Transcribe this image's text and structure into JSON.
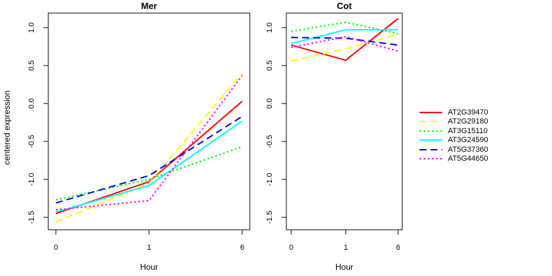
{
  "figure": {
    "background_color": "#ffffff",
    "ylabel": "centered expression",
    "y_tick_labels": [
      "1.0",
      "0.5",
      "0.0",
      "-0.5",
      "-1.0",
      "-1.5"
    ],
    "x_tick_labels": [
      "0",
      "1",
      "6"
    ],
    "axis_color": "#000000"
  },
  "legend": {
    "position": "right-outside",
    "entries": [
      {
        "label": "AT2G39470",
        "color": "#FF0000",
        "line_style": "solid"
      },
      {
        "label": "AT2G29180",
        "color": "#FFFF00",
        "line_style": "dashed"
      },
      {
        "label": "AT3G15110",
        "color": "#00FF00",
        "line_style": "dotted"
      },
      {
        "label": "AT3G24590",
        "color": "#00FFFF",
        "line_style": "solid"
      },
      {
        "label": "AT5G37360",
        "color": "#0000FF",
        "line_style": "dashed"
      },
      {
        "label": "AT5G44650",
        "color": "#FF00FF",
        "line_style": "dotted"
      }
    ]
  },
  "chart_data": [
    {
      "type": "line",
      "title": "Mer",
      "xlabel": "Hour",
      "ylabel": "centered expression",
      "x": [
        0,
        1,
        6
      ],
      "x_spacing": "equal",
      "yticks": [
        1.0,
        0.5,
        0.0,
        -0.5,
        -1.0,
        -1.5
      ],
      "ylim": [
        -1.66,
        1.19
      ],
      "grid": false,
      "series": [
        {
          "name": "AT2G39470",
          "color": "#FF0000",
          "line_style": "solid",
          "values": [
            -1.45,
            -1.03,
            0.03
          ]
        },
        {
          "name": "AT2G29180",
          "color": "#FFFF00",
          "line_style": "dashed",
          "values": [
            -1.56,
            -1.05,
            0.4
          ]
        },
        {
          "name": "AT3G15110",
          "color": "#00FF00",
          "line_style": "dotted",
          "values": [
            -1.27,
            -1.0,
            -0.57
          ]
        },
        {
          "name": "AT3G24590",
          "color": "#00FFFF",
          "line_style": "solid",
          "values": [
            -1.43,
            -1.08,
            -0.23
          ]
        },
        {
          "name": "AT5G37360",
          "color": "#0000FF",
          "line_style": "dashed",
          "values": [
            -1.31,
            -0.95,
            -0.17
          ]
        },
        {
          "name": "AT5G44650",
          "color": "#FF00FF",
          "line_style": "dotted",
          "values": [
            -1.4,
            -1.28,
            0.37
          ]
        }
      ]
    },
    {
      "type": "line",
      "title": "Cot",
      "xlabel": "Hour",
      "ylabel": "centered expression",
      "x": [
        0,
        1,
        6
      ],
      "x_spacing": "equal",
      "yticks": [
        1.0,
        0.5,
        0.0,
        -0.5,
        -1.0,
        -1.5
      ],
      "ylim": [
        -1.66,
        1.19
      ],
      "grid": false,
      "series": [
        {
          "name": "AT2G39470",
          "color": "#FF0000",
          "line_style": "solid",
          "values": [
            0.77,
            0.57,
            1.12
          ]
        },
        {
          "name": "AT2G29180",
          "color": "#FFFF00",
          "line_style": "dashed",
          "values": [
            0.56,
            0.72,
            0.91
          ]
        },
        {
          "name": "AT3G15110",
          "color": "#00FF00",
          "line_style": "dotted",
          "values": [
            0.95,
            1.07,
            0.92
          ]
        },
        {
          "name": "AT3G24590",
          "color": "#00FFFF",
          "line_style": "solid",
          "values": [
            0.79,
            0.97,
            0.97
          ]
        },
        {
          "name": "AT5G37360",
          "color": "#0000FF",
          "line_style": "dashed",
          "values": [
            0.87,
            0.86,
            0.77
          ]
        },
        {
          "name": "AT5G44650",
          "color": "#FF00FF",
          "line_style": "dotted",
          "values": [
            0.74,
            0.88,
            0.69
          ]
        }
      ]
    }
  ]
}
